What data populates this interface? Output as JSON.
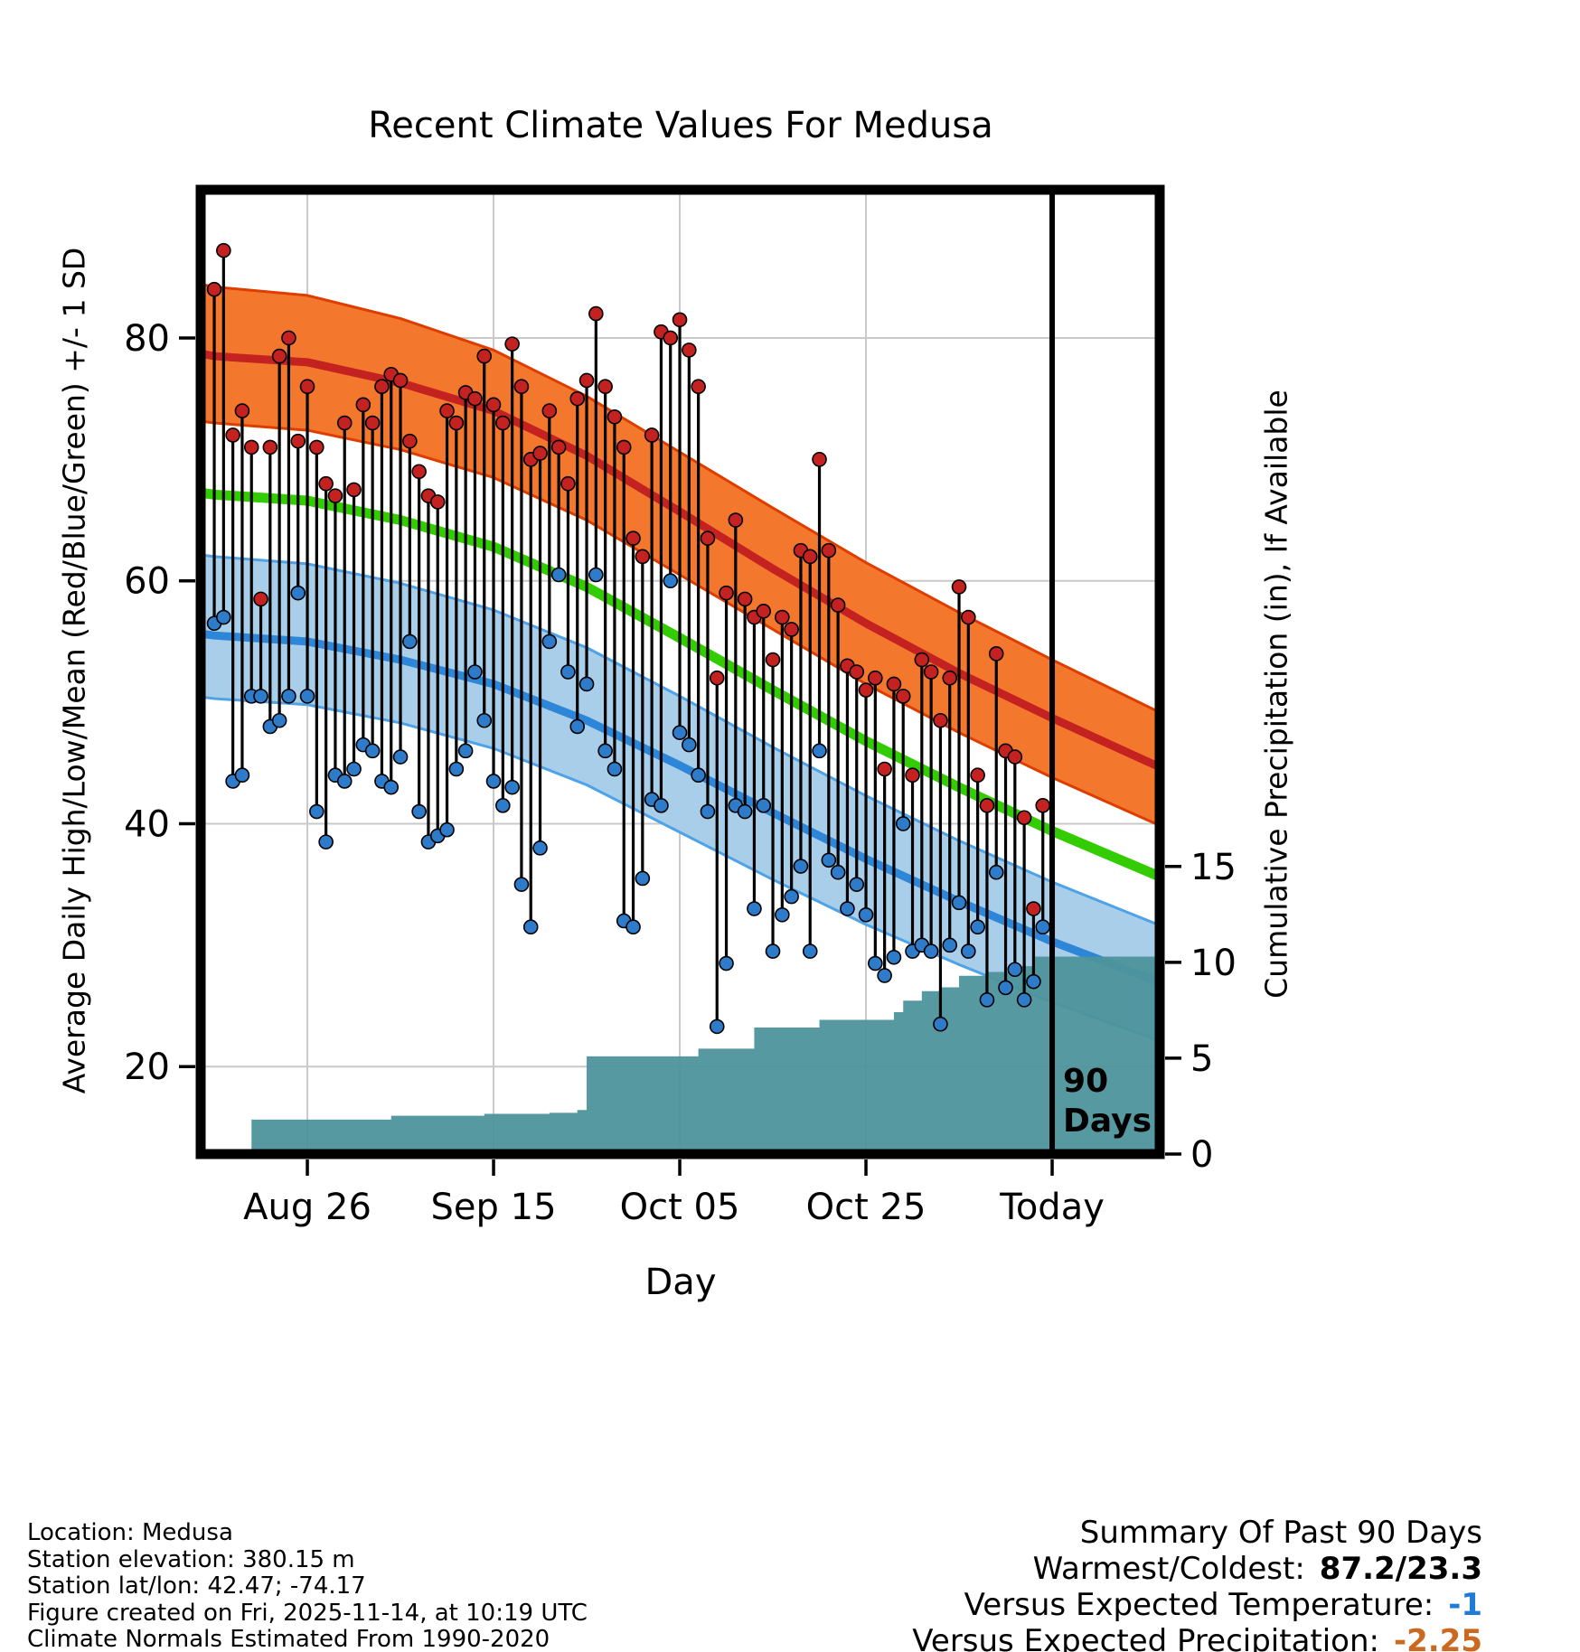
{
  "chart_data": {
    "type": "line",
    "title": "Recent Climate Values For Medusa",
    "xlabel": "Day",
    "ylabel_left": "Average Daily High/Low/Mean (Red/Blue/Green) +/- 1 SD",
    "ylabel_right": "Cumulative Precipitation (in), If Available",
    "xlim_days": [
      -1.46,
      101.55
    ],
    "ylim_left": [
      12.8,
      92.2
    ],
    "ylim_right": [
      0,
      50.3
    ],
    "grid": true,
    "x_ticks": [
      {
        "day": 10,
        "label": "Aug 26"
      },
      {
        "day": 30,
        "label": "Sep 15"
      },
      {
        "day": 50,
        "label": "Oct 05"
      },
      {
        "day": 70,
        "label": "Oct 25"
      },
      {
        "day": 90,
        "label": "Today"
      }
    ],
    "y_left_ticks": [
      20,
      40,
      60,
      80
    ],
    "y_right_ticks": [
      0,
      5,
      10,
      15
    ],
    "annotation": {
      "lines": [
        "90",
        "Days"
      ],
      "day": 90
    },
    "daily": {
      "day": [
        0,
        1,
        2,
        3,
        4,
        5,
        6,
        7,
        8,
        9,
        10,
        11,
        12,
        13,
        14,
        15,
        16,
        17,
        18,
        19,
        20,
        21,
        22,
        23,
        24,
        25,
        26,
        27,
        28,
        29,
        30,
        31,
        32,
        33,
        34,
        35,
        36,
        37,
        38,
        39,
        40,
        41,
        42,
        43,
        44,
        45,
        46,
        47,
        48,
        49,
        50,
        51,
        52,
        53,
        54,
        55,
        56,
        57,
        58,
        59,
        60,
        61,
        62,
        63,
        64,
        65,
        66,
        67,
        68,
        69,
        70,
        71,
        72,
        73,
        74,
        75,
        76,
        77,
        78,
        79,
        80,
        81,
        82,
        83,
        84,
        85,
        86,
        87,
        88,
        89
      ],
      "high": [
        84,
        87.2,
        72,
        74,
        71,
        58.5,
        71,
        78.5,
        80,
        71.5,
        76,
        71,
        68,
        67,
        73,
        67.5,
        74.5,
        73,
        76,
        77,
        76.5,
        71.5,
        69,
        67,
        66.5,
        74,
        73,
        75.5,
        75,
        78.5,
        74.5,
        73,
        79.5,
        76,
        70,
        70.5,
        74,
        71,
        68,
        75,
        76.5,
        82,
        76,
        73.5,
        71,
        63.5,
        62,
        72,
        80.5,
        80,
        81.5,
        79,
        76,
        63.5,
        52,
        59,
        65,
        58.5,
        57,
        57.5,
        53.5,
        57,
        56,
        62.5,
        62,
        70,
        62.5,
        58,
        53,
        52.5,
        51,
        52,
        44.5,
        51.5,
        50.5,
        44,
        53.5,
        52.5,
        48.5,
        52,
        59.5,
        57,
        44,
        41.5,
        54,
        46,
        45.5,
        40.5,
        33,
        41.5
      ],
      "low": [
        56.5,
        57,
        43.5,
        44,
        50.5,
        50.5,
        48,
        48.5,
        50.5,
        59,
        50.5,
        41,
        38.5,
        44,
        43.5,
        44.5,
        46.5,
        46,
        43.5,
        43,
        45.5,
        55,
        41,
        38.5,
        39,
        39.5,
        44.5,
        46,
        52.5,
        48.5,
        43.5,
        41.5,
        43,
        35,
        31.5,
        38,
        55,
        60.5,
        52.5,
        48,
        51.5,
        60.5,
        46,
        44.5,
        32,
        31.5,
        35.5,
        42,
        41.5,
        60,
        47.5,
        46.5,
        44,
        41,
        23.3,
        28.5,
        41.5,
        41,
        33,
        41.5,
        29.5,
        32.5,
        34,
        36.5,
        29.5,
        46,
        37,
        36,
        33,
        35,
        32.5,
        28.5,
        27.5,
        29,
        40,
        29.5,
        30,
        29.5,
        23.5,
        30,
        33.5,
        29.5,
        31.5,
        25.5,
        36,
        26.5,
        28,
        25.5,
        27,
        31.5
      ]
    },
    "normals": {
      "day": [
        -2,
        0,
        10,
        20,
        30,
        40,
        50,
        60,
        70,
        80,
        90,
        102
      ],
      "high_upper": [
        84.5,
        84.2,
        83.5,
        81.6,
        79,
        75.2,
        70.6,
        66,
        61.5,
        57.4,
        53.5,
        49
      ],
      "high_mean": [
        78.8,
        78.5,
        78,
        76.3,
        74,
        70.3,
        65.7,
        61,
        56.5,
        52.4,
        48.7,
        44.5
      ],
      "high_lower": [
        73.2,
        73,
        72.4,
        70.8,
        68.5,
        65,
        60.5,
        56,
        51.5,
        47.5,
        43.8,
        39.7
      ],
      "mean": [
        67.3,
        67.1,
        66.6,
        65,
        62.8,
        59.5,
        55.3,
        51,
        46.8,
        43,
        39.4,
        35.5
      ],
      "low_upper": [
        62.2,
        62,
        61.4,
        59.8,
        57.6,
        54.5,
        50.5,
        46.3,
        42.3,
        38.6,
        35.2,
        31.5
      ],
      "low_mean": [
        55.7,
        55.5,
        55,
        53.5,
        51.5,
        48.5,
        44.8,
        40.9,
        37.1,
        33.6,
        30.3,
        26.8
      ],
      "low_lower": [
        50.5,
        50.3,
        49.8,
        48.3,
        46.2,
        43.2,
        39.3,
        35.4,
        31.7,
        28.4,
        25.3,
        22
      ]
    },
    "precip_steps": [
      [
        3,
        0
      ],
      [
        4,
        1.8
      ],
      [
        18,
        1.8
      ],
      [
        19,
        2.0
      ],
      [
        28,
        2.0
      ],
      [
        29,
        2.1
      ],
      [
        36,
        2.15
      ],
      [
        39,
        2.3
      ],
      [
        40,
        5.1
      ],
      [
        51,
        5.1
      ],
      [
        52,
        5.5
      ],
      [
        57,
        5.5
      ],
      [
        58,
        6.6
      ],
      [
        64,
        6.6
      ],
      [
        65,
        7.0
      ],
      [
        72,
        7.0
      ],
      [
        73,
        7.4
      ],
      [
        74,
        8.0
      ],
      [
        76,
        8.5
      ],
      [
        78,
        8.7
      ],
      [
        80,
        9.3
      ],
      [
        83,
        9.5
      ],
      [
        86,
        9.8
      ],
      [
        88,
        10.3
      ],
      [
        101.5,
        10.3
      ]
    ],
    "colors": {
      "grid": "#c9c9c9",
      "high_band": "#F4772E",
      "high_edge": "#DE3D00",
      "high_line": "#C42121",
      "mean_line": "#33CC00",
      "low_band": "#A8CEE9",
      "low_edge": "#4DA2E8",
      "low_line": "#2E86D8",
      "high_dot": "#C42121",
      "low_dot": "#2E7BC9",
      "precip": "#4D949B"
    }
  },
  "footer": {
    "lines": [
      "Location: Medusa",
      "Station elevation: 380.15 m",
      "Station lat/lon: 42.47; -74.17",
      "Figure created on Fri, 2025-11-14, at 10:19 UTC",
      "Climate Normals Estimated From 1990-2020"
    ]
  },
  "summary": {
    "title": "Summary Of Past 90 Days",
    "rows": [
      {
        "label": "Warmest/Coldest:",
        "value": "87.2/23.3",
        "value_color": "#000000"
      },
      {
        "label": "Versus Expected Temperature:",
        "value": "-1",
        "value_color": "#1E7CD8"
      },
      {
        "label": "Versus Expected Precipitation:",
        "value": "-2.25",
        "value_color": "#CC6920"
      }
    ]
  }
}
